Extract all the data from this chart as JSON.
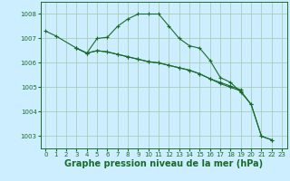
{
  "background_color": "#cceeff",
  "grid_color": "#aaccbb",
  "line_color": "#1a6b2a",
  "xlabel": "Graphe pression niveau de la mer (hPa)",
  "xlabel_fontsize": 7,
  "ylim": [
    1002.5,
    1008.5
  ],
  "xlim": [
    -0.5,
    23.5
  ],
  "yticks": [
    1003,
    1004,
    1005,
    1006,
    1007,
    1008
  ],
  "xticks": [
    0,
    1,
    2,
    3,
    4,
    5,
    6,
    7,
    8,
    9,
    10,
    11,
    12,
    13,
    14,
    15,
    16,
    17,
    18,
    19,
    20,
    21,
    22,
    23
  ],
  "tick_labelsize": 5.0,
  "series": [
    {
      "x": [
        0,
        1,
        3,
        4,
        5,
        6,
        7,
        8,
        9,
        10,
        11,
        12,
        13,
        14,
        15,
        16,
        17,
        18,
        19,
        20,
        21,
        22
      ],
      "y": [
        1007.3,
        1007.1,
        1006.6,
        1006.4,
        1007.0,
        1007.05,
        1007.5,
        1007.8,
        1008.0,
        1008.0,
        1008.0,
        1007.5,
        1007.0,
        1006.7,
        1006.6,
        1006.1,
        1005.4,
        1005.2,
        1004.8,
        1004.3,
        1003.0,
        1002.85
      ]
    },
    {
      "x": [
        3,
        4,
        5,
        6,
        7,
        8,
        9,
        10,
        11,
        12,
        13,
        14,
        15,
        16,
        17,
        18,
        19
      ],
      "y": [
        1006.6,
        1006.4,
        1006.5,
        1006.45,
        1006.35,
        1006.25,
        1006.15,
        1006.05,
        1006.0,
        1005.9,
        1005.8,
        1005.7,
        1005.55,
        1005.35,
        1005.2,
        1005.05,
        1004.9
      ]
    },
    {
      "x": [
        3,
        4,
        5,
        6,
        7,
        8,
        9,
        10,
        11,
        12,
        13,
        14,
        15,
        16,
        17,
        18,
        19,
        20,
        21,
        22
      ],
      "y": [
        1006.6,
        1006.4,
        1006.5,
        1006.45,
        1006.35,
        1006.25,
        1006.15,
        1006.05,
        1006.0,
        1005.9,
        1005.8,
        1005.7,
        1005.55,
        1005.35,
        1005.15,
        1005.0,
        1004.85,
        1004.3,
        1003.0,
        1002.85
      ]
    }
  ]
}
